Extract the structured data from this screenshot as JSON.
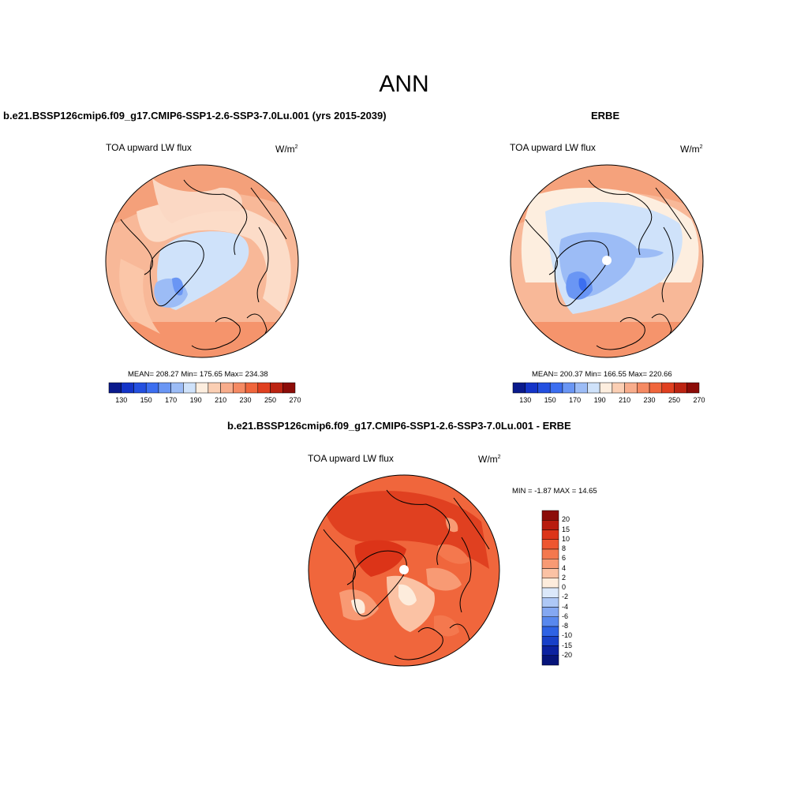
{
  "page_title": "ANN",
  "panels": [
    {
      "case_title": "b.e21.BSSP126cmip6.f09_g17.CMIP6-SSP1-2.6-SSP3-7.0Lu.001 (yrs 2015-2039)",
      "variable": "TOA upward LW flux",
      "units": "W/m",
      "units_sup": "2",
      "stats": "MEAN= 208.27  Min= 175.65  Max= 234.38"
    },
    {
      "case_title": "ERBE",
      "variable": "TOA upward LW flux",
      "units": "W/m",
      "units_sup": "2",
      "stats": "MEAN= 200.37  Min= 166.55  Max= 220.66"
    },
    {
      "case_title": "b.e21.BSSP126cmip6.f09_g17.CMIP6-SSP1-2.6-SSP3-7.0Lu.001 - ERBE",
      "variable": "TOA upward LW flux",
      "units": "W/m",
      "units_sup": "2",
      "stats": "MIN =  -1.87 MAX =  14.65"
    }
  ],
  "colorbar_abs": {
    "tick_labels": [
      "130",
      "150",
      "170",
      "190",
      "210",
      "230",
      "250",
      "270"
    ],
    "colors": [
      "#0a1a8c",
      "#1434c8",
      "#2450e0",
      "#3c6ef0",
      "#6a96f4",
      "#9cbcf6",
      "#cfe2fa",
      "#fdeedf",
      "#fbcfb4",
      "#f8ad8c",
      "#f58a63",
      "#f0663c",
      "#e04020",
      "#bc2412",
      "#8c0c08"
    ]
  },
  "colorbar_diff": {
    "tick_labels": [
      "20",
      "15",
      "10",
      "8",
      "6",
      "4",
      "2",
      "0",
      "-2",
      "-4",
      "-6",
      "-8",
      "-10",
      "-15",
      "-20"
    ],
    "colors": [
      "#8c0c08",
      "#b81c0e",
      "#dc3418",
      "#ee5630",
      "#f4784e",
      "#f89a74",
      "#fbc2a4",
      "#fdecdc",
      "#dbe8fa",
      "#aec8f6",
      "#84a8f2",
      "#5888ee",
      "#2e62e4",
      "#1840c8",
      "#0c22a0",
      "#06147a"
    ]
  }
}
